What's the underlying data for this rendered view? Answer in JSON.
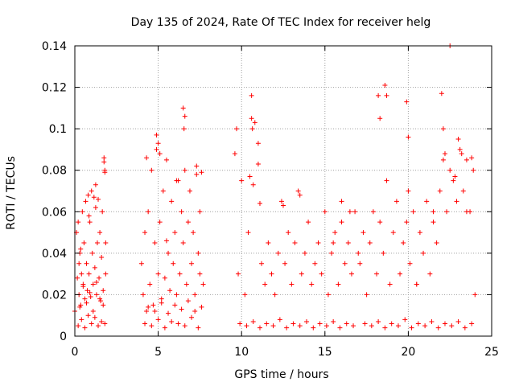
{
  "chart_data": {
    "type": "scatter",
    "title": "Day 135 of 2024, Rate Of TEC Index for receiver helg",
    "xlabel": "GPS time / hours",
    "ylabel": "ROTI / TECUs",
    "xlim": [
      0,
      25
    ],
    "ylim": [
      0,
      0.14
    ],
    "xticks": [
      0,
      5,
      10,
      15,
      20,
      25
    ],
    "xtick_labels": [
      "0",
      "5",
      "10",
      "15",
      "20",
      "25"
    ],
    "yticks": [
      0,
      0.02,
      0.04,
      0.06,
      0.08,
      0.1,
      0.12,
      0.14
    ],
    "ytick_labels": [
      "0",
      "0.02",
      "0.04",
      "0.06",
      "0.08",
      "0.1",
      "0.12",
      "0.14"
    ],
    "grid": true,
    "marker": "plus",
    "color": "#ff0000",
    "series": [
      {
        "x": [
          0.0,
          0.1,
          0.15,
          0.2,
          0.25,
          0.3,
          0.35,
          0.4,
          0.45,
          0.5,
          0.55,
          0.6,
          0.65,
          0.7,
          0.75,
          0.8,
          0.85,
          0.9,
          0.95,
          1.0,
          1.05,
          1.1,
          1.15,
          1.2,
          1.25,
          1.3,
          1.35,
          1.4,
          1.45,
          1.5,
          1.55,
          1.6,
          1.65,
          1.7,
          1.75,
          1.8,
          1.85,
          0.2,
          0.4,
          0.6,
          0.8,
          1.0,
          1.2,
          1.4,
          1.6,
          1.8,
          0.3,
          0.7,
          1.1,
          1.5,
          0.5,
          0.9,
          1.3,
          1.7,
          1.75,
          1.8,
          1.85,
          0.25,
          0.35,
          0.85,
          1.25,
          4.0,
          4.1,
          4.2,
          4.3,
          4.4,
          4.5,
          4.6,
          4.7,
          4.8,
          4.9,
          5.0,
          5.1,
          5.2,
          5.3,
          5.4,
          5.5,
          5.6,
          5.7,
          5.8,
          5.9,
          6.0,
          6.1,
          6.2,
          6.3,
          6.4,
          6.5,
          6.6,
          6.7,
          6.8,
          6.9,
          7.0,
          7.1,
          7.2,
          7.3,
          7.4,
          7.5,
          7.6,
          7.7,
          4.2,
          4.6,
          5.0,
          5.4,
          5.8,
          6.2,
          6.6,
          7.0,
          7.4,
          4.4,
          4.8,
          5.2,
          5.6,
          6.0,
          6.4,
          6.8,
          7.2,
          7.6,
          4.9,
          5.0,
          5.1,
          6.5,
          6.6,
          6.55,
          7.3,
          7.5,
          4.3,
          5.5,
          6.1,
          9.6,
          9.8,
          10.0,
          10.2,
          10.4,
          10.6,
          10.8,
          11.0,
          11.2,
          11.4,
          11.6,
          11.8,
          12.0,
          12.2,
          12.4,
          12.6,
          12.8,
          13.0,
          13.2,
          13.4,
          13.6,
          13.8,
          14.0,
          14.2,
          14.4,
          14.6,
          14.8,
          15.0,
          15.2,
          15.4,
          15.6,
          15.8,
          16.0,
          16.2,
          16.4,
          16.6,
          16.8,
          17.0,
          9.9,
          10.3,
          10.7,
          11.1,
          11.5,
          11.9,
          12.3,
          12.7,
          13.1,
          13.5,
          13.9,
          14.3,
          14.7,
          15.1,
          15.5,
          15.9,
          16.3,
          16.7,
          10.5,
          10.6,
          10.65,
          10.7,
          11.0,
          11.1,
          9.7,
          12.5,
          13.5,
          15.5,
          16.0,
          16.5,
          17.1,
          17.3,
          17.5,
          17.7,
          17.9,
          18.1,
          18.3,
          18.5,
          18.7,
          18.9,
          19.1,
          19.3,
          19.5,
          19.7,
          19.9,
          20.1,
          20.3,
          20.5,
          20.7,
          20.9,
          21.1,
          21.3,
          21.5,
          21.7,
          21.9,
          22.1,
          22.3,
          22.5,
          22.7,
          22.9,
          23.1,
          23.3,
          23.5,
          23.7,
          23.9,
          24.0,
          17.4,
          17.8,
          18.2,
          18.6,
          19.0,
          19.4,
          19.8,
          20.2,
          20.6,
          21.0,
          21.4,
          21.8,
          22.2,
          22.6,
          23.0,
          23.4,
          23.8,
          18.2,
          18.3,
          18.6,
          18.7,
          19.9,
          20.0,
          22.0,
          22.1,
          22.2,
          22.5,
          22.8,
          23.0,
          23.2,
          23.5,
          23.8,
          20.0,
          20.5,
          21.5
        ],
        "y": [
          0.012,
          0.05,
          0.028,
          0.055,
          0.02,
          0.04,
          0.015,
          0.03,
          0.06,
          0.025,
          0.045,
          0.018,
          0.065,
          0.035,
          0.022,
          0.068,
          0.03,
          0.055,
          0.019,
          0.07,
          0.04,
          0.025,
          0.067,
          0.033,
          0.073,
          0.02,
          0.045,
          0.066,
          0.028,
          0.05,
          0.017,
          0.038,
          0.06,
          0.022,
          0.084,
          0.08,
          0.045,
          0.005,
          0.008,
          0.004,
          0.01,
          0.006,
          0.009,
          0.005,
          0.007,
          0.006,
          0.014,
          0.016,
          0.012,
          0.018,
          0.024,
          0.021,
          0.026,
          0.015,
          0.086,
          0.079,
          0.03,
          0.035,
          0.042,
          0.058,
          0.062,
          0.035,
          0.02,
          0.05,
          0.012,
          0.06,
          0.025,
          0.08,
          0.015,
          0.045,
          0.09,
          0.03,
          0.055,
          0.018,
          0.07,
          0.028,
          0.085,
          0.04,
          0.022,
          0.065,
          0.035,
          0.05,
          0.02,
          0.075,
          0.03,
          0.06,
          0.045,
          0.08,
          0.025,
          0.055,
          0.07,
          0.035,
          0.05,
          0.02,
          0.082,
          0.04,
          0.03,
          0.079,
          0.025,
          0.006,
          0.005,
          0.008,
          0.004,
          0.007,
          0.006,
          0.005,
          0.009,
          0.004,
          0.014,
          0.012,
          0.016,
          0.011,
          0.015,
          0.013,
          0.017,
          0.012,
          0.014,
          0.097,
          0.093,
          0.088,
          0.11,
          0.106,
          0.1,
          0.078,
          0.06,
          0.086,
          0.046,
          0.075,
          0.088,
          0.03,
          0.075,
          0.02,
          0.05,
          0.116,
          0.103,
          0.093,
          0.035,
          0.025,
          0.045,
          0.03,
          0.02,
          0.04,
          0.065,
          0.035,
          0.05,
          0.025,
          0.045,
          0.07,
          0.03,
          0.04,
          0.055,
          0.025,
          0.035,
          0.045,
          0.03,
          0.06,
          0.02,
          0.04,
          0.05,
          0.025,
          0.065,
          0.035,
          0.045,
          0.03,
          0.06,
          0.04,
          0.006,
          0.005,
          0.007,
          0.004,
          0.006,
          0.005,
          0.008,
          0.004,
          0.006,
          0.005,
          0.007,
          0.004,
          0.006,
          0.005,
          0.007,
          0.004,
          0.006,
          0.005,
          0.077,
          0.105,
          0.1,
          0.073,
          0.083,
          0.064,
          0.1,
          0.063,
          0.068,
          0.045,
          0.055,
          0.06,
          0.035,
          0.05,
          0.02,
          0.045,
          0.06,
          0.03,
          0.055,
          0.04,
          0.075,
          0.025,
          0.05,
          0.065,
          0.03,
          0.045,
          0.055,
          0.035,
          0.06,
          0.025,
          0.05,
          0.04,
          0.065,
          0.03,
          0.055,
          0.045,
          0.07,
          0.085,
          0.06,
          0.08,
          0.075,
          0.065,
          0.09,
          0.07,
          0.085,
          0.06,
          0.08,
          0.02,
          0.006,
          0.005,
          0.007,
          0.004,
          0.006,
          0.005,
          0.008,
          0.004,
          0.006,
          0.005,
          0.007,
          0.004,
          0.006,
          0.005,
          0.007,
          0.004,
          0.006,
          0.116,
          0.105,
          0.121,
          0.116,
          0.113,
          0.096,
          0.117,
          0.1,
          0.088,
          0.14,
          0.077,
          0.095,
          0.088,
          0.06,
          0.086,
          0.07,
          0.025,
          0.06
        ]
      }
    ]
  }
}
